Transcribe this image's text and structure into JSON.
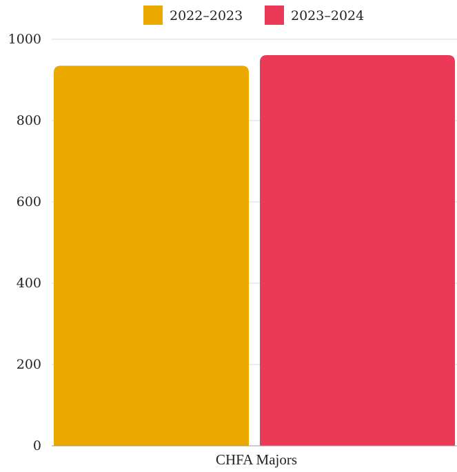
{
  "chart_data": {
    "type": "bar",
    "categories": [
      "CHFA Majors"
    ],
    "series": [
      {
        "name": "2022–2023",
        "values": [
          935
        ],
        "color": "#EBA900"
      },
      {
        "name": "2023–2024",
        "values": [
          961
        ],
        "color": "#EA3A58"
      }
    ],
    "ylim": [
      0,
      1000
    ],
    "yticks": [
      "0",
      "200",
      "400",
      "600",
      "800",
      "1000"
    ],
    "xlabel": "",
    "ylabel": "",
    "grid": true,
    "legend": "top-center"
  }
}
